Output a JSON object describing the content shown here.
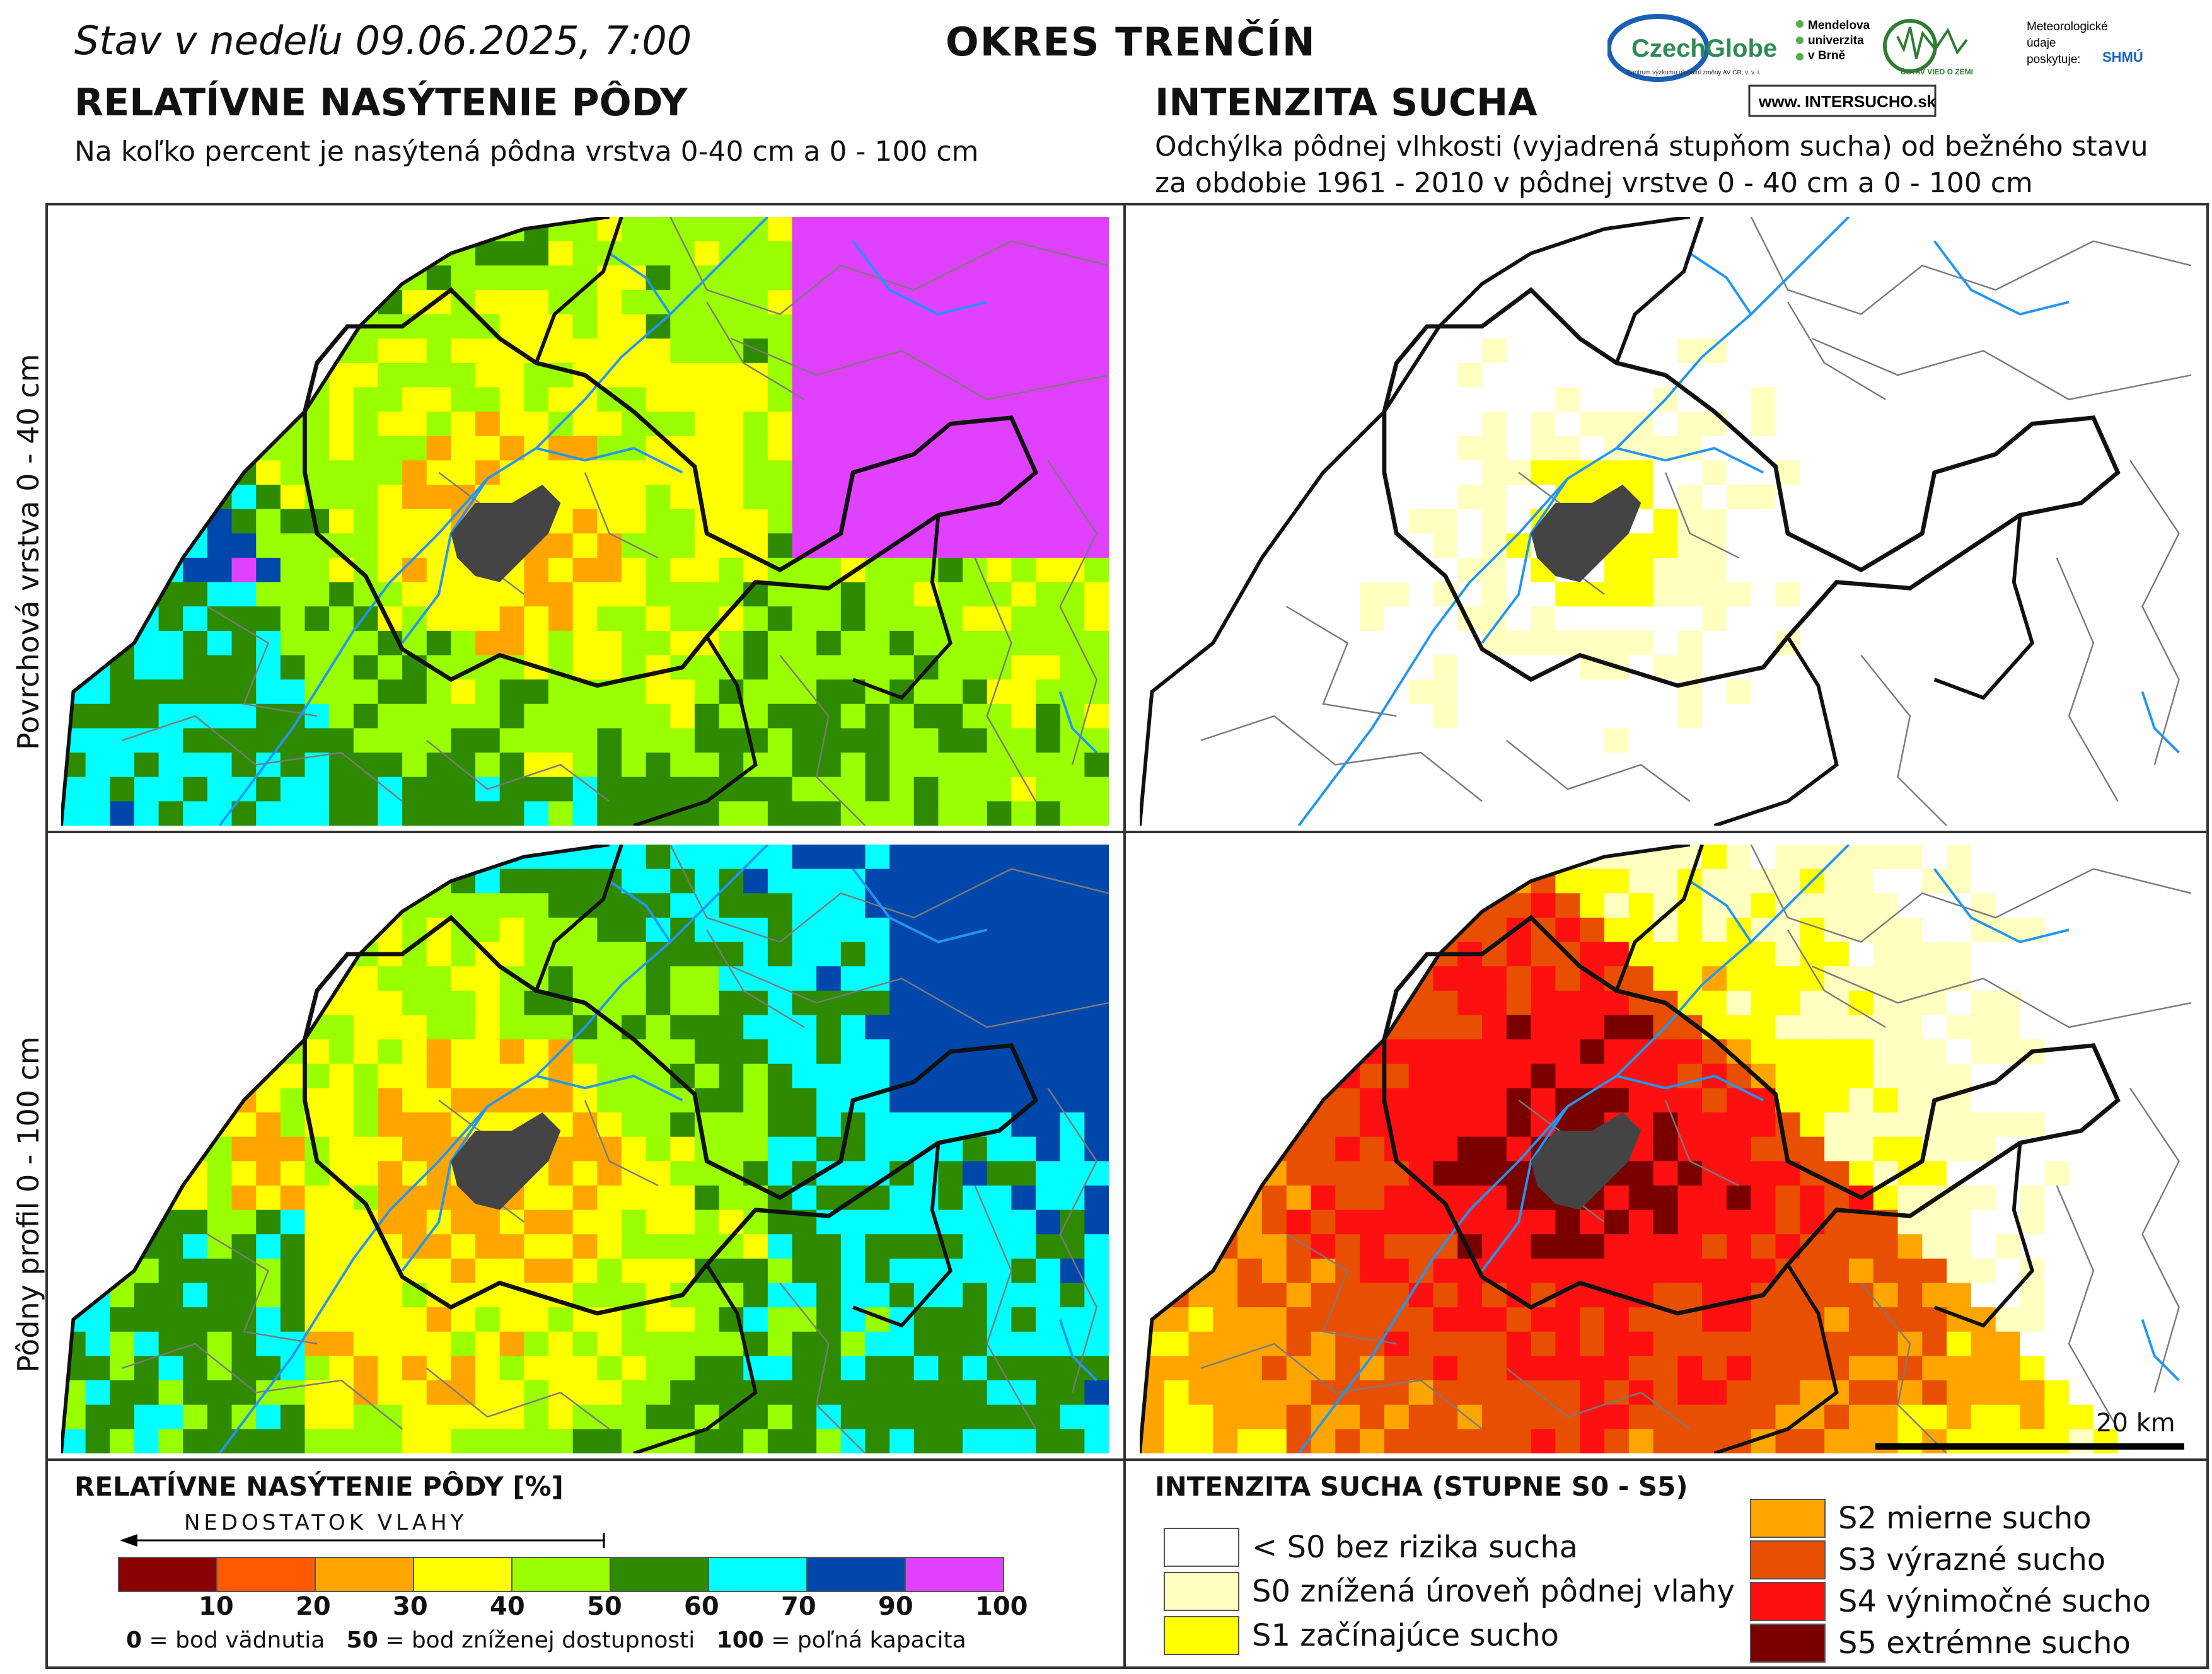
{
  "header": {
    "date": "Stav v nedeľu 09.06.2025, 7:00",
    "district": "OKRES TRENČÍN"
  },
  "left_section": {
    "title": "RELATÍVNE NASÝTENIE PÔDY",
    "subtitle": "Na koľko percent je nasýtená pôdna vrstva 0-40 cm a 0 - 100 cm"
  },
  "right_section": {
    "title": "INTENZITA SUCHA",
    "subtitle_line1": "Odchýlka pôdnej vlhkosti (vyjadrená stupňom sucha) od bežného stavu",
    "subtitle_line2": "za obdobie 1961 - 2010 v pôdnej vrstve 0 - 40 cm a 0 - 100 cm"
  },
  "logos": {
    "czechglobe": "CzechGlobe",
    "czechglobe_small": "Centrum výzkumu globální změny AV ČR, v. v. i.",
    "mendel_1": "Mendelova",
    "mendel_2": "univerzita",
    "mendel_3": "v Brně",
    "uvz": "ÚSTAV VIED O ZEMI",
    "met_1": "Meteorologické",
    "met_2": "údaje",
    "met_3": "poskytuje:",
    "shmu": "SHMÚ",
    "intersucho_pre": "www.",
    "intersucho_a": "INTER",
    "intersucho_b": "SUCHO",
    "intersucho_post": ".sk"
  },
  "row_labels": {
    "top": "Povrchová vrstva 0 - 40 cm",
    "bottom": "Pôdny profil 0 - 100 cm"
  },
  "scale_bar": "20 km",
  "legend_left": {
    "title": "RELATÍVNE NASÝTENIE PÔDY [%]",
    "arrow_label": "NEDOSTATOK VLAHY",
    "classes": [
      {
        "color": "#8b0000",
        "upper": "10"
      },
      {
        "color": "#ff5a00",
        "upper": "20"
      },
      {
        "color": "#ffa500",
        "upper": "30"
      },
      {
        "color": "#ffff00",
        "upper": "40"
      },
      {
        "color": "#9aff00",
        "upper": "50"
      },
      {
        "color": "#2e8b00",
        "upper": "60"
      },
      {
        "color": "#00ffff",
        "upper": "70"
      },
      {
        "color": "#0047ab",
        "upper": "90"
      },
      {
        "color": "#e040ff",
        "upper": "100"
      }
    ],
    "note_0_num": "0",
    "note_0_text": " = bod vädnutia",
    "note_50_num": "50",
    "note_50_text": " = bod zníženej dostupnosti",
    "note_100_num": "100",
    "note_100_text": " = poľná kapacita"
  },
  "legend_right": {
    "title": "INTENZITA SUCHA (STUPNE S0 - S5)",
    "items": [
      {
        "color": "#ffffff",
        "label": "< S0 bez rizika sucha"
      },
      {
        "color": "#ffffc0",
        "label": "S0 znížená úroveň pôdnej vlahy"
      },
      {
        "color": "#ffff00",
        "label": "S1 začínajúce sucho"
      },
      {
        "color": "#ffa500",
        "label": "S2 mierne sucho"
      },
      {
        "color": "#e84f00",
        "label": "S3 výrazné sucho"
      },
      {
        "color": "#ff1010",
        "label": "S4 výnimočné sucho"
      },
      {
        "color": "#7a0000",
        "label": "S5 extrémne sucho"
      }
    ]
  },
  "map_colors": {
    "city": "#444444",
    "river": "#2196f3",
    "border": "#000000",
    "minor_border": "#888888"
  }
}
